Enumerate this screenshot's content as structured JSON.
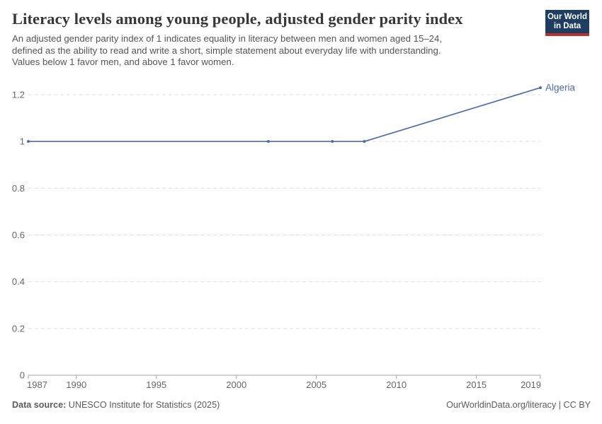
{
  "header": {
    "title": "Literacy levels among young people, adjusted gender parity index",
    "subtitle": "An adjusted gender parity index of 1 indicates equality in literacy between men and women aged 15–24,\ndefined as the ability to read and write a short, simple statement about everyday life with understanding.\nValues below 1 favor men, and above 1 favor women.",
    "logo": {
      "line1": "Our World",
      "line2": "in Data"
    }
  },
  "chart_data": {
    "type": "line",
    "title": "Literacy levels among young people, adjusted gender parity index",
    "xlabel": "",
    "ylabel": "",
    "xlim": [
      1987,
      2019
    ],
    "ylim": [
      0,
      1.2
    ],
    "x_ticks": [
      1987,
      1990,
      1995,
      2000,
      2005,
      2010,
      2015,
      2019
    ],
    "y_ticks": [
      0,
      0.2,
      0.4,
      0.6,
      0.8,
      1,
      1.2
    ],
    "y_tick_labels": [
      "0",
      "0.2",
      "0.4",
      "0.6",
      "0.8",
      "1",
      "1.2"
    ],
    "grid": "horizontal-dashed",
    "legend": "end-of-line-label",
    "series": [
      {
        "name": "Algeria",
        "color": "#4d6ca8",
        "x": [
          1987,
          2002,
          2006,
          2008,
          2019
        ],
        "y": [
          1,
          1,
          1,
          1,
          1.23
        ]
      }
    ]
  },
  "footer": {
    "datasource_label": "Data source:",
    "datasource_value": " UNESCO Institute for Statistics (2025)",
    "credit": "OurWorldinData.org/literacy | CC BY"
  },
  "colors": {
    "line": "#4d6ca8",
    "grid": "#dddddd",
    "axis": "#a1a1a1",
    "tick_text": "#666666",
    "title_text": "#373737",
    "subtitle_text": "#555555",
    "logo_navy": "#1d3d63",
    "logo_red": "#b5332c"
  }
}
